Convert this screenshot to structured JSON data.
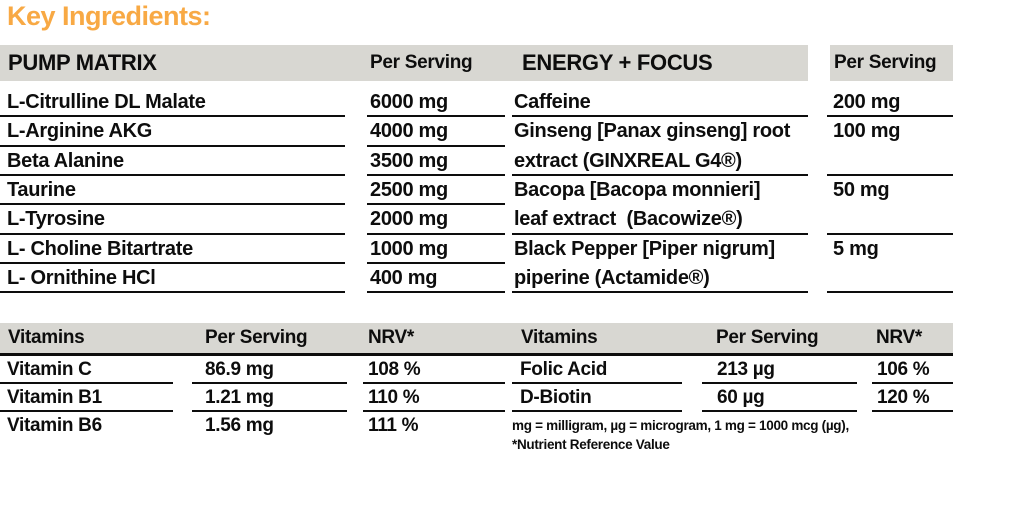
{
  "page_title": "Key Ingredients:",
  "colors": {
    "accent_orange": "#F8A944",
    "header_gray": "#D8D7D2",
    "text_black": "#0d0d0d"
  },
  "pump_matrix": {
    "title": "PUMP MATRIX",
    "per_serving_label": "Per Serving",
    "rows": [
      {
        "name": "L-Citrulline DL Malate",
        "amount": "6000 mg"
      },
      {
        "name": "L-Arginine AKG",
        "amount": "4000 mg"
      },
      {
        "name": "Beta Alanine",
        "amount": "3500 mg"
      },
      {
        "name": "Taurine",
        "amount": "2500 mg"
      },
      {
        "name": "L-Tyrosine",
        "amount": "2000 mg"
      },
      {
        "name": "L- Choline Bitartrate",
        "amount": "1000 mg"
      },
      {
        "name": "L- Ornithine HCl",
        "amount": "400 mg"
      }
    ]
  },
  "energy_focus": {
    "title": "ENERGY + FOCUS",
    "per_serving_label": "Per Serving",
    "rows": [
      {
        "name_lines": [
          "Caffeine",
          ""
        ],
        "amount": "200 mg"
      },
      {
        "name_lines": [
          "Ginseng [Panax ginseng] root",
          "extract (GINXREAL G4®)"
        ],
        "amount": "100 mg"
      },
      {
        "name_lines": [
          "Bacopa [Bacopa monnieri]",
          "leaf extract  (Bacowize®)"
        ],
        "amount": "50 mg"
      },
      {
        "name_lines": [
          "Black Pepper [Piper nigrum]",
          "piperine (Actamide®)"
        ],
        "amount": "5 mg"
      }
    ]
  },
  "vitamins_left": {
    "title": "Vitamins",
    "per_serving_label": "Per Serving",
    "nrv_label": "NRV*",
    "rows": [
      {
        "name": "Vitamin C",
        "amount": "86.9 mg",
        "nrv": "108 %"
      },
      {
        "name": "Vitamin B1",
        "amount": "1.21 mg",
        "nrv": "110 %"
      },
      {
        "name": "Vitamin B6",
        "amount": "1.56 mg",
        "nrv": "111 %"
      }
    ]
  },
  "vitamins_right": {
    "title": "Vitamins",
    "per_serving_label": "Per Serving",
    "nrv_label": "NRV*",
    "rows": [
      {
        "name": "Folic Acid",
        "amount": "213 µg",
        "nrv": "106 %"
      },
      {
        "name": "D-Biotin",
        "amount": "60 µg",
        "nrv": "120 %"
      }
    ]
  },
  "footnote": {
    "line1": "mg = milligram, µg = microgram, 1 mg = 1000 mcg (µg),",
    "line2": "*Nutrient Reference Value"
  }
}
